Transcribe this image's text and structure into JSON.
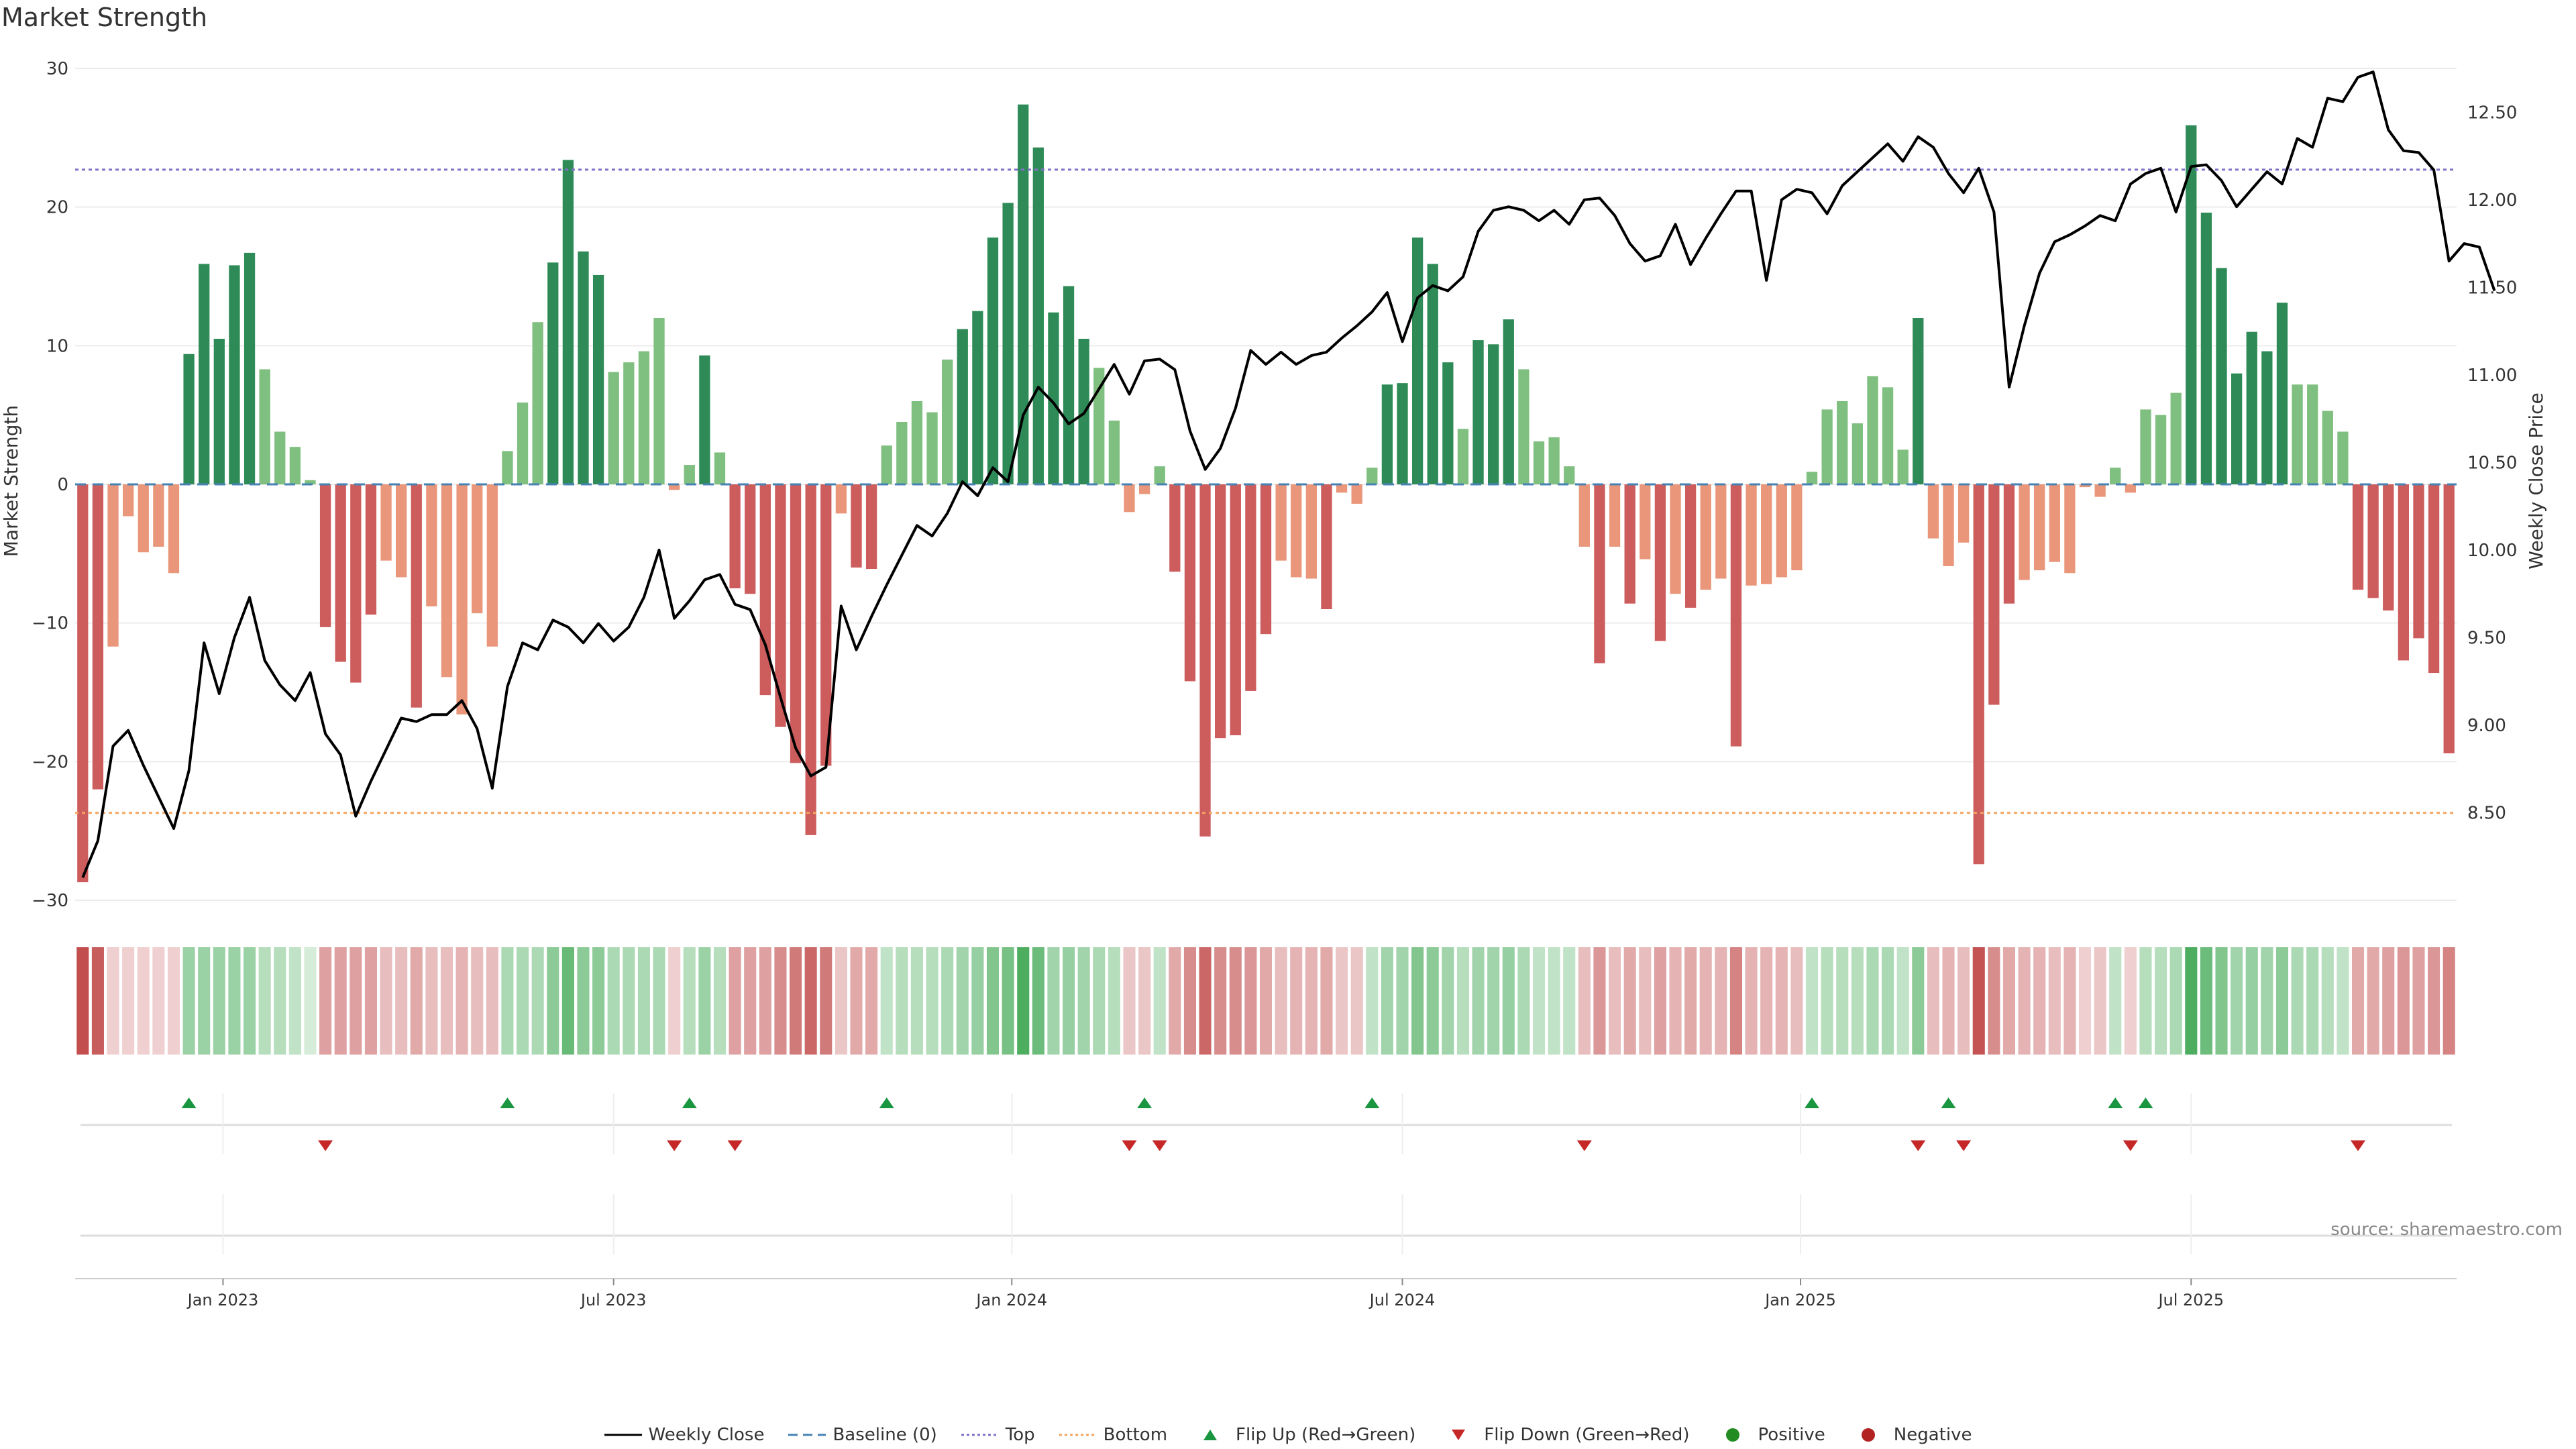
{
  "page_title": "Market Strength",
  "source_text": "source: sharemaestro.com",
  "chart_data": {
    "type": "bar",
    "title": "Market Strength",
    "ylabel": "Market Strength",
    "y2label": "Weekly Close Price",
    "ylim": [
      -30,
      30
    ],
    "y2lim": [
      8.0,
      12.75
    ],
    "y_ticks": [
      "30",
      "20",
      "10",
      "0",
      "−10",
      "−20",
      "−30"
    ],
    "y2_ticks": [
      "12.50",
      "12.00",
      "11.50",
      "11.00",
      "10.50",
      "10.00",
      "9.50",
      "9.00",
      "8.50"
    ],
    "x_ticks": [
      "Jan 2023",
      "Jul 2023",
      "Jan 2024",
      "Jul 2024",
      "Jan 2025",
      "Jul 2025"
    ],
    "x_tick_weeks": [
      9.75,
      35.5,
      61.75,
      87.5,
      113.75,
      139.5
    ],
    "top_line": 22.7,
    "bottom_line": -23.7,
    "colors": {
      "positive_strong": "#2e8b57",
      "positive_weak": "#7fbf7f",
      "negative_strong": "#cd5c5c",
      "negative_weak": "#e9967a",
      "close_line": "#000000",
      "baseline": "#4682b4",
      "top": "#8470c8",
      "bottom": "#f4a460",
      "flip_up": "#1a9641",
      "flip_down": "#c62828"
    },
    "strength": [
      -28.7,
      -22,
      -11.7,
      -2.3,
      -4.9,
      -4.5,
      -6.4,
      9.4,
      15.9,
      10.5,
      15.8,
      16.7,
      8.3,
      3.8,
      2.7,
      0.3,
      -10.3,
      -12.8,
      -14.3,
      -9.4,
      -5.5,
      -6.7,
      -16.1,
      -8.8,
      -13.9,
      -16.6,
      -9.3,
      -11.7,
      2.4,
      5.9,
      11.7,
      16,
      23.4,
      16.8,
      15.1,
      8.1,
      8.8,
      9.6,
      12,
      -0.4,
      1.4,
      9.3,
      2.3,
      -7.5,
      -7.9,
      -15.2,
      -17.5,
      -20.1,
      -25.3,
      -20.3,
      -2.1,
      -6,
      -6.1,
      2.8,
      4.5,
      6,
      5.2,
      9,
      11.2,
      12.5,
      17.8,
      20.3,
      27.4,
      24.3,
      12.4,
      14.3,
      10.5,
      8.4,
      4.6,
      -2,
      -0.7,
      1.3,
      -6.3,
      -14.2,
      -25.4,
      -18.3,
      -18.1,
      -14.9,
      -10.8,
      -5.5,
      -6.7,
      -6.8,
      -9,
      -0.6,
      -1.4,
      1.2,
      7.2,
      7.3,
      17.8,
      15.9,
      8.8,
      4,
      10.4,
      10.1,
      11.9,
      8.3,
      3.1,
      3.4,
      1.3,
      -4.5,
      -12.9,
      -4.5,
      -8.6,
      -5.4,
      -11.3,
      -7.9,
      -8.9,
      -7.6,
      -6.8,
      -18.9,
      -7.3,
      -7.2,
      -6.7,
      -6.2,
      0.9,
      5.4,
      6,
      4.4,
      7.8,
      7,
      2.5,
      12,
      -3.9,
      -5.9,
      -4.2,
      -27.4,
      -15.9,
      -8.6,
      -6.9,
      -6.2,
      -5.6,
      -6.4,
      -0.2,
      -0.9,
      1.2,
      -0.6,
      5.4,
      5,
      6.6,
      25.9,
      19.6,
      15.6,
      8,
      11,
      9.6,
      13.1,
      7.2,
      7.2,
      5.3,
      3.8,
      -7.6,
      -8.2,
      -9.1,
      -12.7,
      -11.1,
      -13.6,
      -19.4
    ],
    "weekly_close": [
      8.13,
      8.34,
      8.88,
      8.97,
      8.77,
      8.59,
      8.41,
      8.74,
      9.47,
      9.18,
      9.5,
      9.73,
      9.37,
      9.23,
      9.14,
      9.3,
      8.95,
      8.83,
      8.48,
      8.68,
      8.86,
      9.04,
      9.02,
      9.06,
      9.06,
      9.14,
      8.98,
      8.64,
      9.22,
      9.47,
      9.43,
      9.6,
      9.56,
      9.47,
      9.58,
      9.48,
      9.56,
      9.73,
      10.0,
      9.61,
      9.71,
      9.83,
      9.86,
      9.69,
      9.66,
      9.46,
      9.16,
      8.87,
      8.71,
      8.76,
      9.68,
      9.43,
      9.62,
      9.8,
      9.97,
      10.14,
      10.08,
      10.21,
      10.39,
      10.31,
      10.47,
      10.39,
      10.77,
      10.93,
      10.84,
      10.72,
      10.78,
      10.92,
      11.06,
      10.89,
      11.08,
      11.09,
      11.03,
      10.68,
      10.46,
      10.58,
      10.81,
      11.14,
      11.06,
      11.13,
      11.06,
      11.11,
      11.13,
      11.21,
      11.28,
      11.36,
      11.47,
      11.19,
      11.44,
      11.51,
      11.48,
      11.56,
      11.82,
      11.94,
      11.96,
      11.94,
      11.88,
      11.94,
      11.86,
      12.0,
      12.01,
      11.91,
      11.75,
      11.65,
      11.68,
      11.86,
      11.63,
      11.78,
      11.92,
      12.05,
      12.05,
      11.54,
      12.0,
      12.06,
      12.04,
      11.92,
      12.08,
      12.16,
      12.24,
      12.32,
      12.22,
      12.36,
      12.3,
      12.15,
      12.04,
      12.18,
      11.93,
      10.93,
      11.28,
      11.58,
      11.76,
      11.8,
      11.85,
      11.91,
      11.88,
      12.09,
      12.15,
      12.18,
      11.93,
      12.19,
      12.2,
      12.11,
      11.96,
      12.06,
      12.16,
      12.09,
      12.35,
      12.3,
      12.58,
      12.56,
      12.7,
      12.73,
      12.4,
      12.28,
      12.27,
      12.17,
      11.65,
      11.75,
      11.73,
      11.48
    ],
    "band_intensity": [
      -0.93,
      -0.85,
      -0.25,
      -0.25,
      -0.25,
      -0.25,
      -0.25,
      0.48,
      0.48,
      0.48,
      0.48,
      0.48,
      0.35,
      0.35,
      0.3,
      0.2,
      -0.5,
      -0.5,
      -0.5,
      -0.5,
      -0.35,
      -0.35,
      -0.45,
      -0.35,
      -0.35,
      -0.4,
      -0.35,
      -0.35,
      0.4,
      0.4,
      0.4,
      0.55,
      0.72,
      0.55,
      0.55,
      0.4,
      0.4,
      0.4,
      0.4,
      -0.25,
      0.35,
      0.48,
      0.35,
      -0.5,
      -0.5,
      -0.5,
      -0.6,
      -0.7,
      -0.8,
      -0.7,
      -0.3,
      -0.45,
      -0.45,
      0.3,
      0.35,
      0.35,
      0.35,
      0.4,
      0.45,
      0.5,
      0.6,
      0.65,
      0.85,
      0.7,
      0.45,
      0.5,
      0.45,
      0.4,
      0.35,
      -0.3,
      -0.3,
      0.3,
      -0.45,
      -0.6,
      -0.8,
      -0.6,
      -0.6,
      -0.55,
      -0.45,
      -0.35,
      -0.4,
      -0.4,
      -0.45,
      -0.3,
      -0.3,
      0.3,
      0.45,
      0.45,
      0.6,
      0.55,
      0.45,
      0.35,
      0.45,
      0.45,
      0.5,
      0.4,
      0.3,
      0.3,
      0.3,
      -0.35,
      -0.55,
      -0.35,
      -0.45,
      -0.35,
      -0.5,
      -0.4,
      -0.45,
      -0.4,
      -0.4,
      -0.65,
      -0.4,
      -0.4,
      -0.4,
      -0.35,
      0.3,
      0.35,
      0.35,
      0.35,
      0.4,
      0.4,
      0.3,
      0.55,
      -0.35,
      -0.4,
      -0.35,
      -0.9,
      -0.6,
      -0.45,
      -0.4,
      -0.4,
      -0.35,
      -0.4,
      -0.25,
      -0.3,
      0.3,
      -0.25,
      0.35,
      0.35,
      0.4,
      0.85,
      0.7,
      0.6,
      0.45,
      0.5,
      0.45,
      0.55,
      0.4,
      0.4,
      0.35,
      0.3,
      -0.45,
      -0.45,
      -0.5,
      -0.55,
      -0.5,
      -0.55,
      -0.65
    ],
    "flip_up_weeks": [
      7,
      28,
      40,
      53,
      70,
      85,
      114,
      123,
      134,
      136
    ],
    "flip_down_weeks": [
      16,
      39,
      43,
      69,
      71,
      99,
      121,
      124,
      135,
      150
    ],
    "legend": [
      {
        "key": "close",
        "label": "Weekly Close"
      },
      {
        "key": "baseline",
        "label": "Baseline (0)"
      },
      {
        "key": "top",
        "label": "Top"
      },
      {
        "key": "bottom",
        "label": "Bottom"
      },
      {
        "key": "flip_up",
        "label": "Flip Up (Red→Green)"
      },
      {
        "key": "flip_down",
        "label": "Flip Down (Green→Red)"
      },
      {
        "key": "positive",
        "label": "Positive"
      },
      {
        "key": "negative",
        "label": "Negative"
      }
    ]
  }
}
